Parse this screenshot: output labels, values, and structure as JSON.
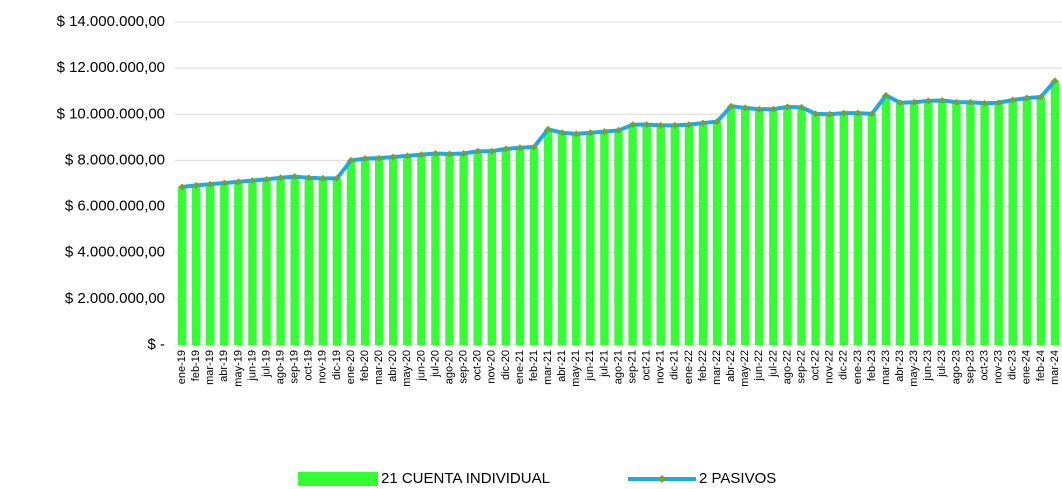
{
  "chart_data": {
    "type": "bar_line",
    "categories": [
      "ene-19",
      "feb-19",
      "mar-19",
      "abr-19",
      "may-19",
      "jun-19",
      "jul-19",
      "ago-19",
      "sep-19",
      "oct-19",
      "nov-19",
      "dic-19",
      "ene-20",
      "feb-20",
      "mar-20",
      "abr-20",
      "may-20",
      "jun-20",
      "jul-20",
      "ago-20",
      "sep-20",
      "oct-20",
      "nov-20",
      "dic-20",
      "ene-21",
      "feb-21",
      "mar-21",
      "abr-21",
      "may-21",
      "jun-21",
      "jul-21",
      "ago-21",
      "sep-21",
      "oct-21",
      "nov-21",
      "dic-21",
      "ene-22",
      "feb-22",
      "mar-22",
      "abr-22",
      "may-22",
      "jun-22",
      "jul-22",
      "ago-22",
      "sep-22",
      "oct-22",
      "nov-22",
      "dic-22",
      "ene-23",
      "feb-23",
      "mar-23",
      "abr-23",
      "may-23",
      "jun-23",
      "jul-23",
      "ago-23",
      "sep-23",
      "oct-23",
      "nov-23",
      "dic-23",
      "ene-24",
      "feb-24",
      "mar-24"
    ],
    "series": [
      {
        "name": "21 CUENTA INDIVIDUAL",
        "type": "bar",
        "color": "#33ff33",
        "values": [
          6850000,
          6920000,
          6970000,
          7020000,
          7070000,
          7130000,
          7180000,
          7250000,
          7300000,
          7250000,
          7220000,
          7220000,
          8000000,
          8080000,
          8100000,
          8150000,
          8200000,
          8250000,
          8300000,
          8280000,
          8300000,
          8400000,
          8400000,
          8500000,
          8550000,
          8580000,
          9350000,
          9200000,
          9150000,
          9200000,
          9250000,
          9300000,
          9550000,
          9550000,
          9520000,
          9520000,
          9550000,
          9620000,
          9680000,
          10350000,
          10280000,
          10220000,
          10220000,
          10320000,
          10300000,
          10020000,
          10000000,
          10050000,
          10050000,
          10020000,
          10820000,
          10500000,
          10520000,
          10580000,
          10600000,
          10520000,
          10520000,
          10480000,
          10500000,
          10620000,
          10700000,
          10750000,
          11450000
        ]
      },
      {
        "name": "2 PASIVOS",
        "type": "line",
        "color": "#1fa9e1",
        "marker_color": "#77a032",
        "values": [
          6850000,
          6920000,
          6970000,
          7020000,
          7070000,
          7130000,
          7180000,
          7250000,
          7300000,
          7250000,
          7220000,
          7220000,
          8000000,
          8080000,
          8100000,
          8150000,
          8200000,
          8250000,
          8300000,
          8280000,
          8300000,
          8400000,
          8400000,
          8500000,
          8550000,
          8580000,
          9350000,
          9200000,
          9150000,
          9200000,
          9250000,
          9300000,
          9550000,
          9550000,
          9520000,
          9520000,
          9550000,
          9620000,
          9680000,
          10350000,
          10280000,
          10220000,
          10220000,
          10320000,
          10300000,
          10020000,
          10000000,
          10050000,
          10050000,
          10020000,
          10820000,
          10500000,
          10520000,
          10580000,
          10600000,
          10520000,
          10520000,
          10480000,
          10500000,
          10620000,
          10700000,
          10750000,
          11450000
        ]
      }
    ],
    "ylim": [
      0,
      14000000
    ],
    "yticks": [
      {
        "value": 0,
        "label": "$ -"
      },
      {
        "value": 2000000,
        "label": "$ 2.000.000,00"
      },
      {
        "value": 4000000,
        "label": "$ 4.000.000,00"
      },
      {
        "value": 6000000,
        "label": "$ 6.000.000,00"
      },
      {
        "value": 8000000,
        "label": "$ 8.000.000,00"
      },
      {
        "value": 10000000,
        "label": "$ 10.000.000,00"
      },
      {
        "value": 12000000,
        "label": "$ 12.000.000,00"
      },
      {
        "value": 14000000,
        "label": "$ 14.000.000,00"
      }
    ],
    "grid": true,
    "legend": "bottom"
  }
}
